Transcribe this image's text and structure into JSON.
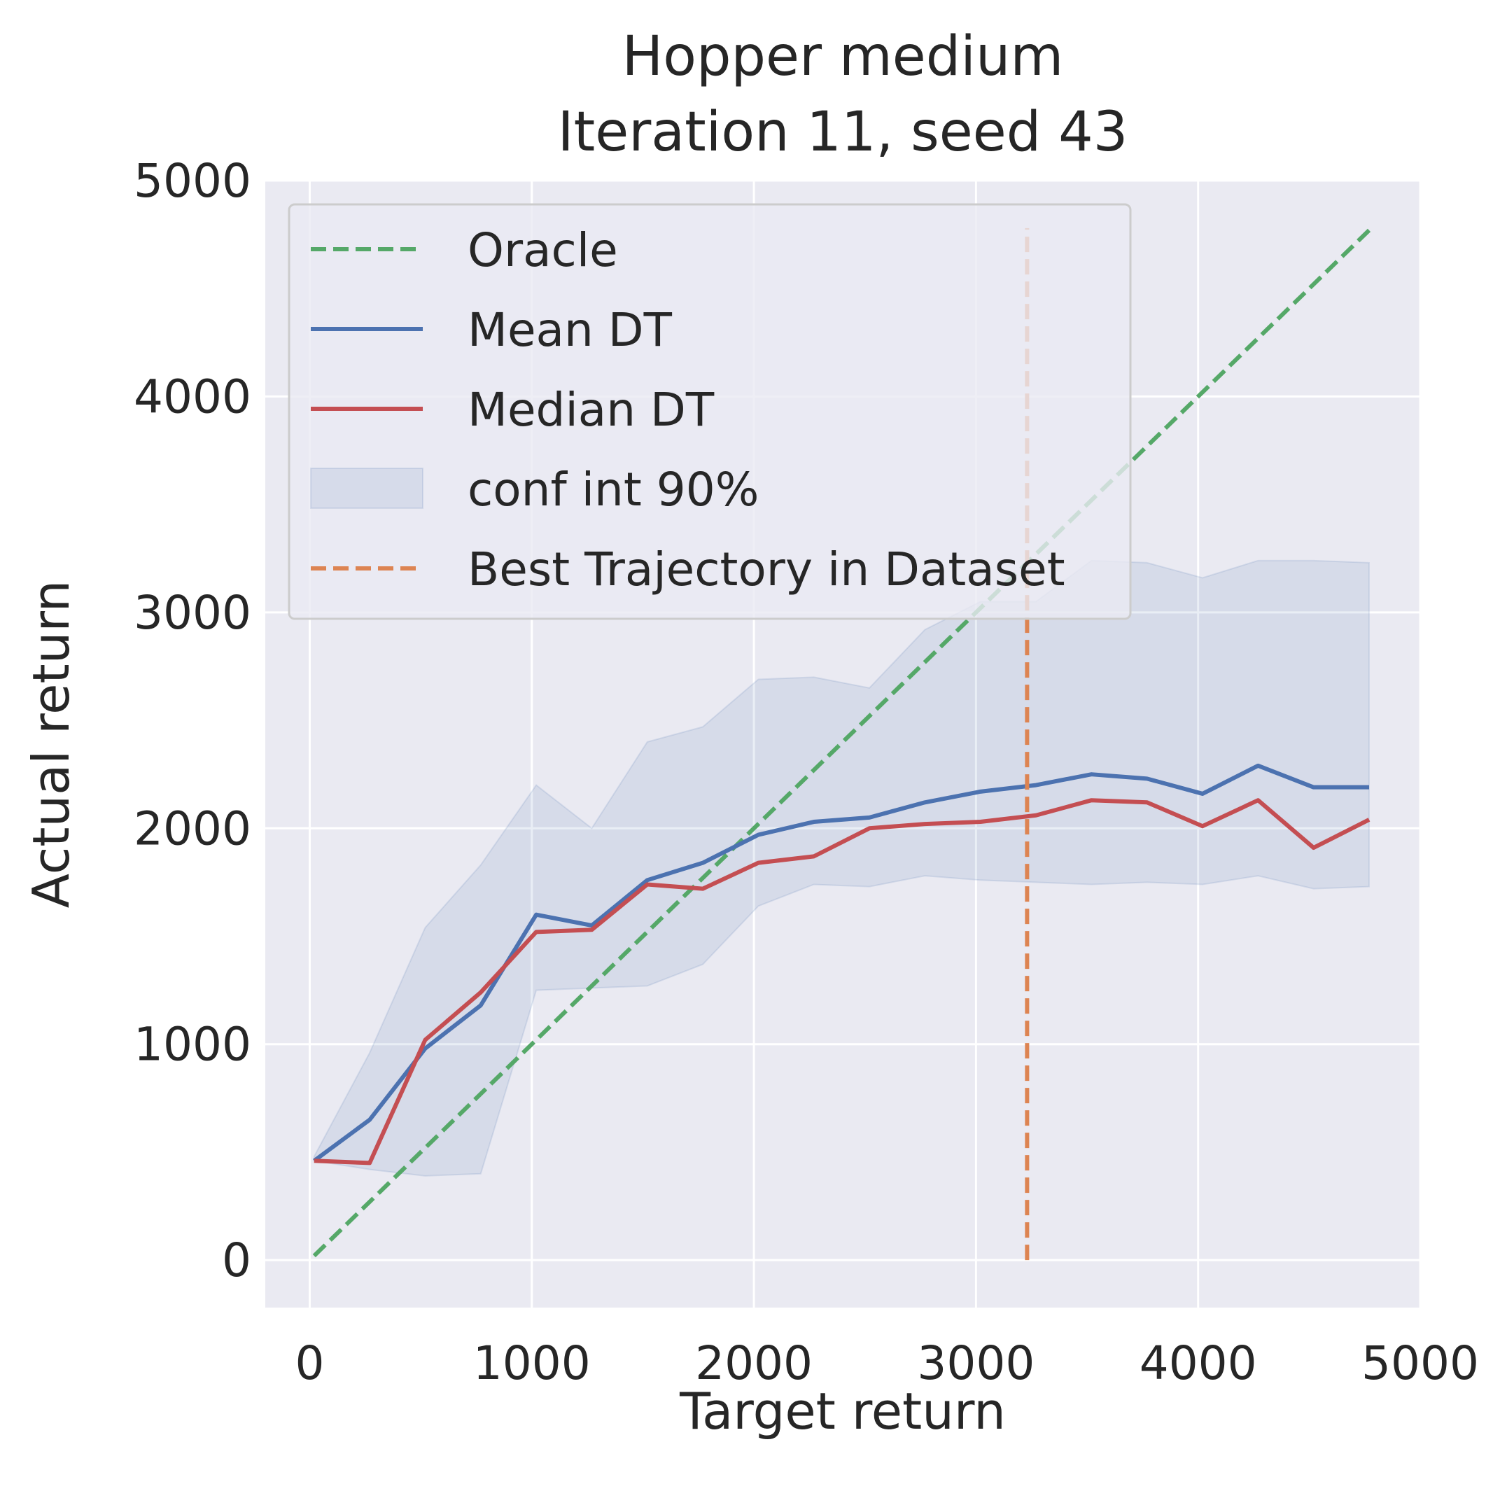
{
  "chart_data": {
    "type": "line",
    "title": "Hopper medium",
    "subtitle": "Iteration 11, seed 43",
    "xlabel": "Target return",
    "ylabel": "Actual return",
    "xlim": [
      -200,
      5000
    ],
    "ylim": [
      -220,
      5000
    ],
    "xticks": [
      0,
      1000,
      2000,
      3000,
      4000,
      5000
    ],
    "yticks": [
      0,
      1000,
      2000,
      3000,
      4000,
      5000
    ],
    "grid": true,
    "legend_placement": "top-left",
    "colors": {
      "background": "#eaeaf2",
      "oracle": "#55a868",
      "mean": "#4c72b0",
      "median": "#c44e52",
      "band": "#4c72b0",
      "best": "#dd8452"
    },
    "x": [
      20,
      270,
      520,
      770,
      1020,
      1270,
      1520,
      1770,
      2020,
      2270,
      2520,
      2770,
      3020,
      3270,
      3520,
      3770,
      4020,
      4270,
      4520,
      4770
    ],
    "series": [
      {
        "name": "Oracle",
        "style": "dashed",
        "x": [
          20,
          4770
        ],
        "values": [
          20,
          4770
        ]
      },
      {
        "name": "Mean DT",
        "style": "solid",
        "values": [
          460,
          650,
          980,
          1180,
          1600,
          1550,
          1760,
          1840,
          1970,
          2030,
          2050,
          2120,
          2170,
          2200,
          2250,
          2230,
          2160,
          2290,
          2190,
          2190
        ]
      },
      {
        "name": "Median DT",
        "style": "solid",
        "values": [
          460,
          450,
          1020,
          1240,
          1520,
          1530,
          1740,
          1720,
          1840,
          1870,
          2000,
          2020,
          2030,
          2060,
          2130,
          2120,
          2010,
          2130,
          1910,
          2040
        ]
      },
      {
        "name": "conf int 90%",
        "style": "band",
        "lower": [
          460,
          420,
          390,
          400,
          1250,
          1260,
          1270,
          1370,
          1640,
          1740,
          1730,
          1780,
          1760,
          1750,
          1740,
          1750,
          1740,
          1780,
          1720,
          1730
        ],
        "upper": [
          480,
          960,
          1540,
          1830,
          2200,
          2000,
          2400,
          2470,
          2690,
          2700,
          2650,
          2920,
          3050,
          3050,
          3240,
          3230,
          3160,
          3240,
          3240,
          3230
        ]
      },
      {
        "name": "Best Trajectory in Dataset",
        "style": "dashed-vertical",
        "x": 3230,
        "ymin": 0,
        "ymax": 4780
      }
    ]
  }
}
